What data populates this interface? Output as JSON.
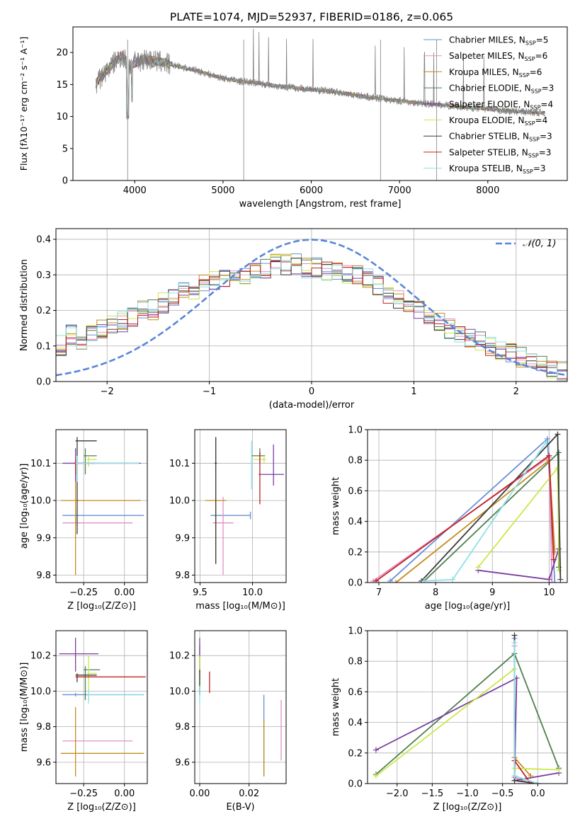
{
  "figure_title": "PLATE=1074, MJD=52937, FIBERID=0186, z=0.065",
  "colors": [
    "#6a8fd6",
    "#e58fc4",
    "#c58a1f",
    "#4f7f4f",
    "#7a3fa0",
    "#c9e84a",
    "#3a3a3a",
    "#c02020",
    "#8fe0e6"
  ],
  "chart_data": [
    {
      "id": "spectrum",
      "type": "line",
      "title": "PLATE=1074, MJD=52937, FIBERID=0186, z=0.065",
      "xlabel": "wavelength [Angstrom, rest frame]",
      "ylabel": "Flux [fλ10⁻¹⁷ erg cm⁻² s⁻¹ A⁻¹]",
      "xlim": [
        3300,
        8900
      ],
      "ylim": [
        0,
        24
      ],
      "xticks": [
        4000,
        5000,
        6000,
        7000,
        8000
      ],
      "yticks": [
        0,
        5,
        10,
        15,
        20
      ],
      "legend_position": "top-right",
      "legend": [
        "Chabrier MILES, N_SSP=5",
        "Salpeter MILES, N_SSP=6",
        "Kroupa MILES, N_SSP=6",
        "Chabrier ELODIE, N_SSP=3",
        "Salpeter ELODIE, N_SSP=4",
        "Kroupa ELODIE, N_SSP=4",
        "Chabrier STELIB, N_SSP=3",
        "Salpeter STELIB, N_SSP=3",
        "Kroupa STELIB, N_SSP=3"
      ],
      "legend_colors": [
        "#6a8fd6",
        "#e58fc4",
        "#c58a1f",
        "#4f7f4f",
        "#7a3fa0",
        "#c9e84a",
        "#3a3a3a",
        "#c02020",
        "#8fe0e6"
      ],
      "x": [
        3550,
        3700,
        3850,
        3950,
        4100,
        4300,
        4500,
        4700,
        4860,
        5000,
        5200,
        5400,
        5600,
        5800,
        6000,
        6200,
        6400,
        6560,
        6700,
        6900,
        7100,
        7300,
        7500,
        7700,
        7900,
        8100,
        8300,
        8600
      ],
      "y": [
        15,
        17.5,
        19.5,
        18,
        19,
        18.5,
        17.8,
        17.2,
        16.5,
        16,
        15.5,
        15.2,
        14.8,
        14.5,
        14.2,
        14,
        13.6,
        13.2,
        13,
        12.6,
        12.3,
        12,
        11.8,
        11.5,
        11.3,
        11,
        10.8,
        10.6
      ]
    },
    {
      "id": "residuals",
      "type": "histogram",
      "xlabel": "(data-model)/error",
      "ylabel": "Normed distribution",
      "xlim": [
        -2.5,
        2.5
      ],
      "ylim": [
        0,
        0.43
      ],
      "xticks": [
        -2,
        -1,
        0,
        1,
        2
      ],
      "yticks": [
        0.0,
        0.1,
        0.2,
        0.3,
        0.4
      ],
      "legend_position": "top-right",
      "legend": [
        "𝒩(0, 1)"
      ],
      "curve_color": "#5a86d6",
      "envelope": [
        0.1,
        0.13,
        0.12,
        0.13,
        0.15,
        0.16,
        0.17,
        0.18,
        0.2,
        0.2,
        0.22,
        0.24,
        0.25,
        0.26,
        0.27,
        0.28,
        0.29,
        0.3,
        0.3,
        0.31,
        0.32,
        0.33,
        0.33,
        0.33,
        0.32,
        0.32,
        0.31,
        0.31,
        0.3,
        0.3,
        0.29,
        0.27,
        0.25,
        0.23,
        0.22,
        0.2,
        0.18,
        0.17,
        0.15,
        0.14,
        0.12,
        0.11,
        0.1,
        0.09,
        0.08,
        0.07,
        0.06,
        0.05,
        0.04,
        0.03
      ]
    },
    {
      "id": "age-vs-z",
      "type": "errorbar",
      "xlabel": "Z [log₁₀(Z/Z⊙)]",
      "ylabel": "age  [log₁₀(age/yr)]",
      "xlim": [
        -0.42,
        0.14
      ],
      "ylim": [
        9.78,
        10.19
      ],
      "xticks": [
        -0.25,
        0.0
      ],
      "yticks": [
        9.8,
        9.9,
        10.0,
        10.1
      ],
      "points": [
        {
          "x": -0.3,
          "y": 9.96,
          "xerr": [
            0.08,
            0.42
          ],
          "yerr": [
            0.02,
            0.02
          ],
          "c": 0
        },
        {
          "x": -0.3,
          "y": 9.94,
          "xerr": [
            0.08,
            0.35
          ],
          "yerr": [
            0.01,
            0.01
          ],
          "c": 1
        },
        {
          "x": -0.3,
          "y": 10.0,
          "xerr": [
            0.09,
            0.4
          ],
          "yerr": [
            0.2,
            0.1
          ],
          "c": 2
        },
        {
          "x": -0.24,
          "y": 10.12,
          "xerr": [
            0.01,
            0.07
          ],
          "yerr": [
            0.05,
            0.02
          ],
          "c": 3
        },
        {
          "x": -0.3,
          "y": 10.1,
          "xerr": [
            0.08,
            0.4
          ],
          "yerr": [
            0.05,
            0.04
          ],
          "c": 4
        },
        {
          "x": -0.22,
          "y": 10.11,
          "xerr": [
            0.01,
            0.05
          ],
          "yerr": [
            0.02,
            0.01
          ],
          "c": 5
        },
        {
          "x": -0.29,
          "y": 10.16,
          "xerr": [
            0.01,
            0.12
          ],
          "yerr": [
            0.25,
            0.01
          ],
          "c": 6
        },
        {
          "x": -0.3,
          "y": 10.1,
          "xerr": [
            0.01,
            0.12
          ],
          "yerr": [
            0.03,
            0.01
          ],
          "c": 7
        },
        {
          "x": -0.29,
          "y": 10.1,
          "xerr": [
            0.01,
            0.38
          ],
          "yerr": [
            0.05,
            0.02
          ],
          "c": 8
        }
      ]
    },
    {
      "id": "age-vs-mass",
      "type": "errorbar",
      "xlabel": "mass [log₁₀(M/M⊙)]",
      "ylabel": "",
      "xlim": [
        9.45,
        10.32
      ],
      "ylim": [
        9.78,
        10.19
      ],
      "xticks": [
        9.5,
        10.0
      ],
      "yticks": [
        9.8,
        9.9,
        10.0,
        10.1
      ],
      "points": [
        {
          "x": 9.98,
          "y": 9.96,
          "xerr": [
            0.38,
            0.0
          ],
          "yerr": [
            0.01,
            0.01
          ],
          "c": 0
        },
        {
          "x": 9.72,
          "y": 9.94,
          "xerr": [
            0.1,
            0.1
          ],
          "yerr": [
            0.14,
            0.07
          ],
          "c": 1
        },
        {
          "x": 9.65,
          "y": 10.0,
          "xerr": [
            0.1,
            0.1
          ],
          "yerr": [
            0.17,
            0.17
          ],
          "c": 2
        },
        {
          "x": 10.07,
          "y": 10.12,
          "xerr": [
            0.08,
            0.05
          ],
          "yerr": [
            0.02,
            0.02
          ],
          "c": 3
        },
        {
          "x": 10.2,
          "y": 10.07,
          "xerr": [
            0.12,
            0.1
          ],
          "yerr": [
            0.03,
            0.08
          ],
          "c": 4
        },
        {
          "x": 10.11,
          "y": 10.11,
          "xerr": [
            0.1,
            0.02
          ],
          "yerr": [
            0.01,
            0.01
          ],
          "c": 5
        },
        {
          "x": 9.65,
          "y": 10.1,
          "xerr": [
            0.01,
            0.01
          ],
          "yerr": [
            0.27,
            0.07
          ],
          "c": 6
        },
        {
          "x": 10.07,
          "y": 10.07,
          "xerr": [
            0.01,
            0.01
          ],
          "yerr": [
            0.08,
            0.06
          ],
          "c": 7
        },
        {
          "x": 9.99,
          "y": 10.1,
          "xerr": [
            0.01,
            0.01
          ],
          "yerr": [
            0.07,
            0.06
          ],
          "c": 8
        }
      ]
    },
    {
      "id": "mass-weight-vs-age",
      "type": "line",
      "xlabel": "age  [log₁₀(age/yr)]",
      "ylabel": "mass weight",
      "xlim": [
        6.8,
        10.32
      ],
      "ylim": [
        0,
        1
      ],
      "xticks": [
        7,
        8,
        9,
        10
      ],
      "yticks": [
        0.0,
        0.2,
        0.4,
        0.6,
        0.8,
        1.0
      ],
      "series": [
        {
          "c": 0,
          "x": [
            7.2,
            9.97,
            10.1
          ],
          "y": [
            0.01,
            0.94,
            0.0
          ]
        },
        {
          "c": 1,
          "x": [
            6.9,
            10.0,
            10.05
          ],
          "y": [
            0.01,
            0.82,
            0.0
          ]
        },
        {
          "c": 2,
          "x": [
            7.3,
            10.0,
            10.1
          ],
          "y": [
            0.0,
            0.8,
            0.2
          ]
        },
        {
          "c": 3,
          "x": [
            7.8,
            10.17,
            10.17
          ],
          "y": [
            0.01,
            0.85,
            0.1
          ]
        },
        {
          "c": 4,
          "x": [
            8.75,
            10.0,
            10.17
          ],
          "y": [
            0.08,
            0.02,
            0.22
          ]
        },
        {
          "c": 5,
          "x": [
            8.75,
            10.15,
            10.18
          ],
          "y": [
            0.1,
            0.75,
            0.08
          ]
        },
        {
          "c": 6,
          "x": [
            7.75,
            10.15,
            10.2
          ],
          "y": [
            0.01,
            0.97,
            0.02
          ]
        },
        {
          "c": 7,
          "x": [
            6.95,
            10.0,
            10.08
          ],
          "y": [
            0.01,
            0.83,
            0.15
          ]
        },
        {
          "c": 8,
          "x": [
            7.8,
            8.3,
            9.95
          ],
          "y": [
            0.01,
            0.02,
            0.92
          ]
        }
      ]
    },
    {
      "id": "mass-vs-z",
      "type": "errorbar",
      "xlabel": "Z [log₁₀(Z/Z⊙)]",
      "ylabel": "mass [log₁₀(M/M⊙)]",
      "xlim": [
        -0.42,
        0.14
      ],
      "ylim": [
        9.48,
        10.34
      ],
      "xticks": [
        -0.25,
        0.0
      ],
      "yticks": [
        9.6,
        9.8,
        10.0,
        10.2
      ],
      "points": [
        {
          "x": -0.3,
          "y": 9.98,
          "xerr": [
            0.08,
            0.42
          ],
          "yerr": [
            0.01,
            0.01
          ],
          "c": 0
        },
        {
          "x": -0.3,
          "y": 9.72,
          "xerr": [
            0.08,
            0.35
          ],
          "yerr": [
            0.01,
            0.01
          ],
          "c": 1
        },
        {
          "x": -0.3,
          "y": 9.65,
          "xerr": [
            0.09,
            0.42
          ],
          "yerr": [
            0.13,
            0.26
          ],
          "c": 2
        },
        {
          "x": -0.24,
          "y": 10.12,
          "xerr": [
            0.01,
            0.09
          ],
          "yerr": [
            0.17,
            0.02
          ],
          "c": 3
        },
        {
          "x": -0.3,
          "y": 10.21,
          "xerr": [
            0.1,
            0.14
          ],
          "yerr": [
            0.1,
            0.09
          ],
          "c": 4
        },
        {
          "x": -0.22,
          "y": 10.1,
          "xerr": [
            0.01,
            0.05
          ],
          "yerr": [
            0.15,
            0.1
          ],
          "c": 5
        },
        {
          "x": -0.29,
          "y": 10.09,
          "xerr": [
            0.01,
            0.12
          ],
          "yerr": [
            0.04,
            0.01
          ],
          "c": 6
        },
        {
          "x": -0.29,
          "y": 10.08,
          "xerr": [
            0.01,
            0.42
          ],
          "yerr": [
            0.01,
            0.01
          ],
          "c": 7
        },
        {
          "x": -0.22,
          "y": 9.98,
          "xerr": [
            0.01,
            0.34
          ],
          "yerr": [
            0.05,
            0.03
          ],
          "c": 8
        }
      ]
    },
    {
      "id": "ebv",
      "type": "errorbar",
      "xlabel": "E(B-V)",
      "ylabel": "",
      "xlim": [
        -0.002,
        0.035
      ],
      "ylim": [
        9.48,
        10.34
      ],
      "xticks": [
        0.0,
        0.02
      ],
      "yticks": [
        9.6,
        9.8,
        10.0,
        10.2
      ],
      "points": [
        {
          "x": 0.026,
          "y": 9.75,
          "xerr": [
            0,
            0
          ],
          "yerr": [
            0.23,
            0.23
          ],
          "c": 0
        },
        {
          "x": 0.033,
          "y": 9.78,
          "xerr": [
            0,
            0
          ],
          "yerr": [
            0.17,
            0.17
          ],
          "c": 1
        },
        {
          "x": 0.026,
          "y": 9.68,
          "xerr": [
            0,
            0
          ],
          "yerr": [
            0.16,
            0.16
          ],
          "c": 2
        },
        {
          "x": 0.0,
          "y": 10.12,
          "xerr": [
            0,
            0
          ],
          "yerr": [
            0.14,
            0.14
          ],
          "c": 3
        },
        {
          "x": 0.0,
          "y": 10.2,
          "xerr": [
            0,
            0
          ],
          "yerr": [
            0.1,
            0.1
          ],
          "c": 4
        },
        {
          "x": 0.0,
          "y": 10.08,
          "xerr": [
            0,
            0
          ],
          "yerr": [
            0.12,
            0.12
          ],
          "c": 5
        },
        {
          "x": 0.0,
          "y": 10.05,
          "xerr": [
            0,
            0
          ],
          "yerr": [
            0.07,
            0.07
          ],
          "c": 6
        },
        {
          "x": 0.004,
          "y": 10.05,
          "xerr": [
            0,
            0
          ],
          "yerr": [
            0.06,
            0.06
          ],
          "c": 7
        },
        {
          "x": 0.0,
          "y": 9.98,
          "xerr": [
            0,
            0
          ],
          "yerr": [
            0.05,
            0.05
          ],
          "c": 8
        }
      ]
    },
    {
      "id": "mass-weight-vs-z",
      "type": "line",
      "xlabel": "Z [log₁₀(Z/Z⊙)]",
      "ylabel": "mass weight",
      "xlim": [
        -2.42,
        0.42
      ],
      "ylim": [
        0,
        1
      ],
      "xticks": [
        -2.0,
        -1.5,
        -1.0,
        -0.5,
        0.0
      ],
      "yticks": [
        0.0,
        0.2,
        0.4,
        0.6,
        0.8,
        1.0
      ],
      "series": [
        {
          "c": 0,
          "x": [
            -0.33,
            -0.33,
            0.0
          ],
          "y": [
            0.95,
            0.05,
            0.0
          ]
        },
        {
          "c": 1,
          "x": [
            -0.33,
            -0.33,
            -0.1
          ],
          "y": [
            0.9,
            0.04,
            0.0
          ]
        },
        {
          "c": 2,
          "x": [
            -0.33,
            -0.1
          ],
          "y": [
            0.17,
            0.05
          ]
        },
        {
          "c": 3,
          "x": [
            -2.3,
            -0.33,
            0.3
          ],
          "y": [
            0.06,
            0.85,
            0.1
          ]
        },
        {
          "c": 4,
          "x": [
            -2.3,
            -0.3,
            -0.33,
            0.3
          ],
          "y": [
            0.22,
            0.69,
            0.02,
            0.07
          ]
        },
        {
          "c": 5,
          "x": [
            -2.3,
            -0.33,
            -0.33,
            0.3
          ],
          "y": [
            0.05,
            0.75,
            0.1,
            0.09
          ]
        },
        {
          "c": 6,
          "x": [
            -0.33,
            -0.33,
            0.0
          ],
          "y": [
            0.97,
            0.02,
            0.0
          ]
        },
        {
          "c": 7,
          "x": [
            -0.33,
            -0.1
          ],
          "y": [
            0.15,
            0.0
          ]
        },
        {
          "c": 8,
          "x": [
            -0.33,
            -0.33,
            0.0
          ],
          "y": [
            0.92,
            0.05,
            0.0
          ]
        }
      ]
    }
  ]
}
